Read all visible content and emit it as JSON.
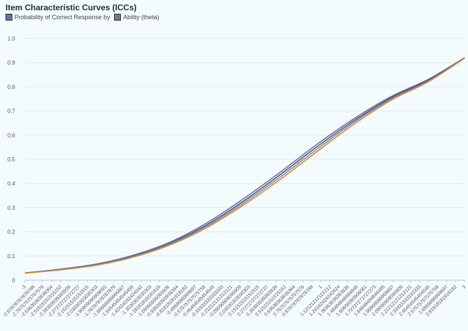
{
  "chart_data": {
    "type": "line",
    "title": "Item Characteristic Curves (ICCs)",
    "legend": {
      "placement": "top-left",
      "entries": [
        "Probability of Correct Response by",
        "Ability (theta)"
      ]
    },
    "xlabel": "",
    "ylabel": "",
    "ylim": [
      0,
      1
    ],
    "xlim": [
      -3,
      3
    ],
    "yticks": [
      "0",
      "0.1",
      "0.2",
      "0.3",
      "0.4",
      "0.5",
      "0.6",
      "0.7",
      "0.8",
      "0.9",
      "1.0"
    ],
    "xticks": [
      "-3",
      "-2.87878787878788",
      "-2.75757575757576",
      "-2.63636363636364",
      "-2.51515151515152",
      "-2.39393939393939",
      "-2.27272727272727",
      "-2.15151515151515",
      "-2.03030303030303",
      "-1.90909090909091",
      "-1.78787878787879",
      "-1.66666666666667",
      "-1.54545454545455",
      "-1.42424242424242",
      "-1.3030303030303",
      "-1.18181818181818",
      "-1.06060606060606",
      "-0.93939393939394",
      "-0.81818181818182",
      "-0.6969696969697",
      "-0.57575757575758",
      "-0.45454545454545",
      "-0.33333333333333",
      "-0.21212121212121",
      "-0.09090909090909",
      "0.03030303030303",
      "0.15151515151515",
      "0.27272727272727",
      "0.39393939393939",
      "0.51515151515152",
      "0.63636363636364",
      "0.75757575757576",
      "0.87878787878788",
      "1",
      "1.12121212121212",
      "1.24242424242424",
      "1.36363636363636",
      "1.48484848484848",
      "1.60606060606061",
      "1.72727272727273",
      "1.84848484848485",
      "1.96969696969697",
      "2.09090909090909",
      "2.21212121212121",
      "2.33333333333333",
      "2.45454545454545",
      "2.57575757575758",
      "2.6969696969697",
      "2.81818181818182",
      "3"
    ],
    "grid": true,
    "series": [
      {
        "color": "#6b6fa0",
        "points": [
          [
            -3,
            0.03
          ],
          [
            -2.5,
            0.046
          ],
          [
            -2,
            0.068
          ],
          [
            -1.5,
            0.105
          ],
          [
            -1,
            0.16
          ],
          [
            -0.5,
            0.24
          ],
          [
            0,
            0.34
          ],
          [
            0.5,
            0.45
          ],
          [
            1,
            0.565
          ],
          [
            1.5,
            0.67
          ],
          [
            2,
            0.76
          ],
          [
            2.5,
            0.83
          ],
          [
            3,
            0.92
          ]
        ]
      },
      {
        "color": "#4a4d8c",
        "points": [
          [
            -3,
            0.03
          ],
          [
            -2.5,
            0.045
          ],
          [
            -2,
            0.066
          ],
          [
            -1.5,
            0.102
          ],
          [
            -1,
            0.155
          ],
          [
            -0.5,
            0.232
          ],
          [
            0,
            0.33
          ],
          [
            0.5,
            0.44
          ],
          [
            1,
            0.555
          ],
          [
            1.5,
            0.662
          ],
          [
            2,
            0.755
          ],
          [
            2.5,
            0.827
          ],
          [
            3,
            0.92
          ]
        ]
      },
      {
        "color": "#8a8a7a",
        "points": [
          [
            -3,
            0.03
          ],
          [
            -2.5,
            0.044
          ],
          [
            -2,
            0.065
          ],
          [
            -1.5,
            0.1
          ],
          [
            -1,
            0.152
          ],
          [
            -0.5,
            0.226
          ],
          [
            0,
            0.322
          ],
          [
            0.5,
            0.43
          ],
          [
            1,
            0.545
          ],
          [
            1.5,
            0.655
          ],
          [
            2,
            0.75
          ],
          [
            2.5,
            0.823
          ],
          [
            3,
            0.919
          ]
        ]
      },
      {
        "color": "#c98a3a",
        "points": [
          [
            -3,
            0.029
          ],
          [
            -2.5,
            0.043
          ],
          [
            -2,
            0.063
          ],
          [
            -1.5,
            0.097
          ],
          [
            -1,
            0.148
          ],
          [
            -0.5,
            0.22
          ],
          [
            0,
            0.314
          ],
          [
            0.5,
            0.42
          ],
          [
            1,
            0.535
          ],
          [
            1.5,
            0.647
          ],
          [
            2,
            0.745
          ],
          [
            2.5,
            0.82
          ],
          [
            3,
            0.918
          ]
        ]
      }
    ]
  }
}
